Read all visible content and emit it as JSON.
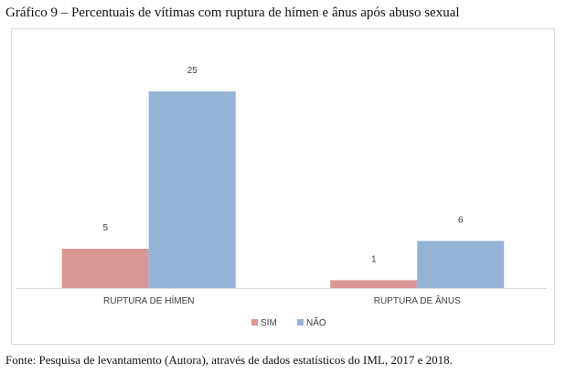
{
  "caption": "Gráfico 9 – Percentuais de vítimas com ruptura de hímen e ânus após abuso sexual",
  "source": "Fonte: Pesquisa de levantamento (Autora), através de dados estatísticos do IML, 2017 e 2018.",
  "chart_data": {
    "type": "bar",
    "title": "",
    "xlabel": "",
    "ylabel": "",
    "categories": [
      "RUPTURA DE HÍMEN",
      "RUPTURA DE ÂNUS"
    ],
    "series": [
      {
        "name": "SIM",
        "values": [
          5,
          1
        ],
        "color": "#d99694"
      },
      {
        "name": "NÃO",
        "values": [
          25,
          6
        ],
        "color": "#95b3d7"
      }
    ],
    "ylim": [
      0,
      25
    ],
    "grid": false,
    "legend_position": "bottom",
    "data_labels": true
  }
}
